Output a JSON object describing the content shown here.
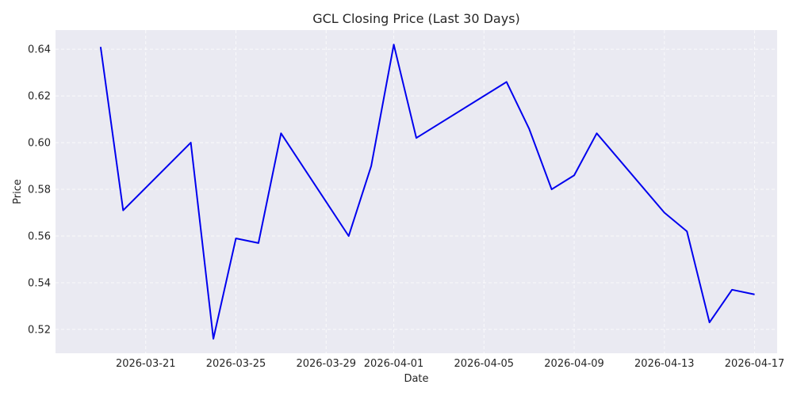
{
  "chart_data": {
    "type": "line",
    "title": "GCL Closing Price (Last 30 Days)",
    "xlabel": "Date",
    "ylabel": "Price",
    "series": [
      {
        "color": "#0000ee",
        "points": [
          {
            "x": "2026-03-19",
            "y": 0.641
          },
          {
            "x": "2026-03-20",
            "y": 0.571
          },
          {
            "x": "2026-03-23",
            "y": 0.6
          },
          {
            "x": "2026-03-24",
            "y": 0.516
          },
          {
            "x": "2026-03-25",
            "y": 0.559
          },
          {
            "x": "2026-03-26",
            "y": 0.557
          },
          {
            "x": "2026-03-27",
            "y": 0.604
          },
          {
            "x": "2026-03-30",
            "y": 0.56
          },
          {
            "x": "2026-03-31",
            "y": 0.59
          },
          {
            "x": "2026-04-01",
            "y": 0.642
          },
          {
            "x": "2026-04-02",
            "y": 0.602
          },
          {
            "x": "2026-04-06",
            "y": 0.626
          },
          {
            "x": "2026-04-07",
            "y": 0.606
          },
          {
            "x": "2026-04-08",
            "y": 0.58
          },
          {
            "x": "2026-04-09",
            "y": 0.586
          },
          {
            "x": "2026-04-10",
            "y": 0.604
          },
          {
            "x": "2026-04-13",
            "y": 0.57
          },
          {
            "x": "2026-04-14",
            "y": 0.562
          },
          {
            "x": "2026-04-15",
            "y": 0.523
          },
          {
            "x": "2026-04-16",
            "y": 0.537
          },
          {
            "x": "2026-04-17",
            "y": 0.535
          }
        ]
      }
    ],
    "x_ticks": [
      "2026-03-21",
      "2026-03-25",
      "2026-03-29",
      "2026-04-01",
      "2026-04-05",
      "2026-04-09",
      "2026-04-13",
      "2026-04-17"
    ],
    "y_ticks": [
      "0.52",
      "0.54",
      "0.56",
      "0.58",
      "0.60",
      "0.62",
      "0.64"
    ],
    "xlim": [
      "2026-03-17",
      "2026-04-18"
    ],
    "ylim": [
      0.5098,
      0.6482
    ],
    "grid": true,
    "legend": "none",
    "colors": {
      "plot_background": "#eaeaf2",
      "line": "#0000ee",
      "grid": "#ffffff"
    }
  }
}
